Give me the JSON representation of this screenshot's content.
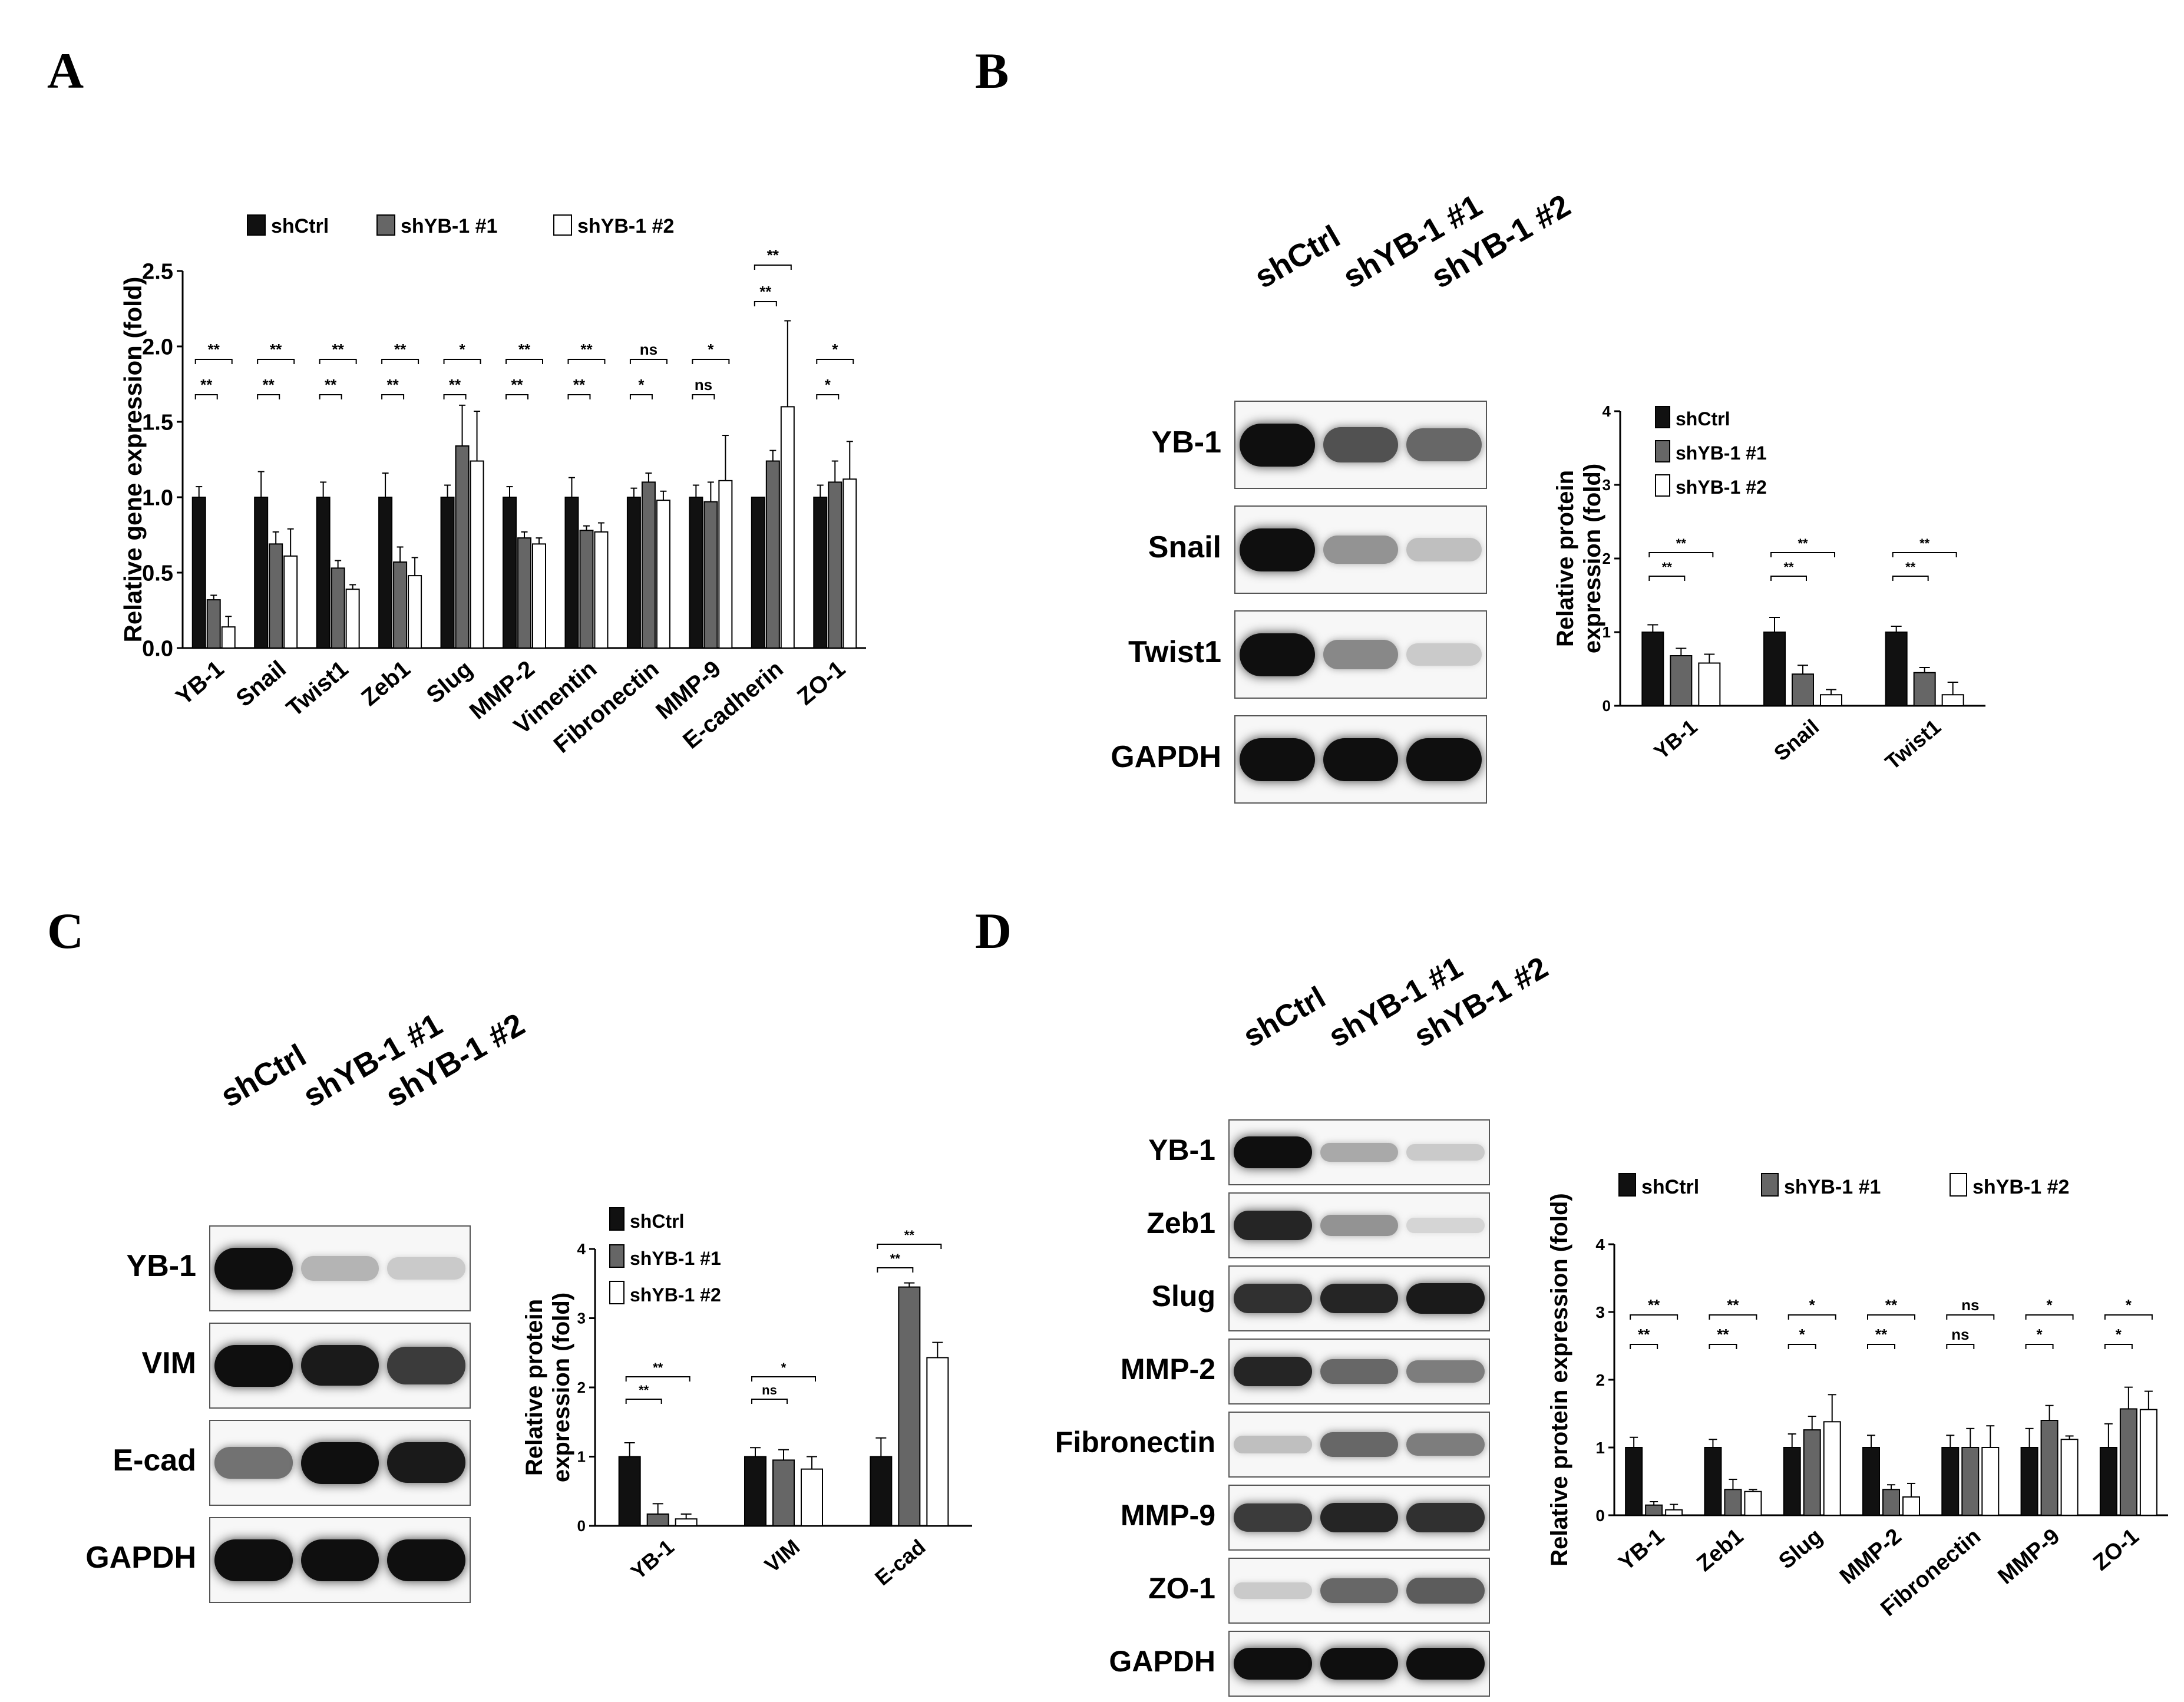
{
  "figure": {
    "panel_letters": [
      "A",
      "B",
      "C",
      "D"
    ],
    "groups": [
      "shCtrl",
      "shYB-1 #1",
      "shYB-1 #2"
    ],
    "group_colors": [
      "#111111",
      "#666666",
      "#ffffff"
    ]
  },
  "panelA": {
    "letter": "A",
    "legend": [
      "shCtrl",
      "shYB-1 #1",
      "shYB-1 #2"
    ]
  },
  "panelB": {
    "letter": "B",
    "blot": {
      "lanes": [
        "shCtrl",
        "shYB-1 #1",
        "shYB-1 #2"
      ],
      "rows": [
        "YB-1",
        "Snail",
        "Twist1",
        "GAPDH"
      ],
      "band_intensity": [
        [
          1.0,
          0.7,
          0.6
        ],
        [
          1.0,
          0.4,
          0.2
        ],
        [
          1.0,
          0.45,
          0.15
        ],
        [
          1.0,
          1.0,
          1.0
        ]
      ]
    }
  },
  "panelC": {
    "letter": "C",
    "blot": {
      "lanes": [
        "shCtrl",
        "shYB-1 #1",
        "shYB-1 #2"
      ],
      "rows": [
        "YB-1",
        "VIM",
        "E-cad",
        "GAPDH"
      ],
      "band_intensity": [
        [
          1.0,
          0.25,
          0.15
        ],
        [
          1.0,
          0.95,
          0.8
        ],
        [
          0.55,
          1.0,
          0.95
        ],
        [
          1.0,
          1.0,
          1.0
        ]
      ]
    }
  },
  "panelD": {
    "letter": "D",
    "blot": {
      "lanes": [
        "shCtrl",
        "shYB-1 #1",
        "shYB-1 #2"
      ],
      "rows": [
        "YB-1",
        "Zeb1",
        "Slug",
        "MMP-2",
        "Fibronectin",
        "MMP-9",
        "ZO-1",
        "GAPDH"
      ],
      "band_intensity": [
        [
          1.0,
          0.3,
          0.15
        ],
        [
          0.9,
          0.4,
          0.1
        ],
        [
          0.85,
          0.9,
          0.95
        ],
        [
          0.9,
          0.6,
          0.5
        ],
        [
          0.2,
          0.6,
          0.5
        ],
        [
          0.8,
          0.9,
          0.85
        ],
        [
          0.15,
          0.6,
          0.65
        ],
        [
          1.0,
          1.0,
          1.0
        ]
      ]
    }
  },
  "chart_data": [
    {
      "id": "A",
      "type": "bar",
      "ylabel": "Relative gene expression (fold)",
      "ylim": [
        0,
        2.5
      ],
      "yticks": [
        "0.0",
        "0.5",
        "1.0",
        "1.5",
        "2.0",
        "2.5"
      ],
      "categories": [
        "YB-1",
        "Snail",
        "Twist1",
        "Zeb1",
        "Slug",
        "MMP-2",
        "Vimentin",
        "Fibronectin",
        "MMP-9",
        "E-cadherin",
        "ZO-1"
      ],
      "series": [
        {
          "name": "shCtrl",
          "values": [
            1.0,
            1.0,
            1.0,
            1.0,
            1.0,
            1.0,
            1.0,
            1.0,
            1.0,
            1.0,
            1.0
          ],
          "errors": [
            0.07,
            0.17,
            0.1,
            0.16,
            0.08,
            0.07,
            0.13,
            0.06,
            0.08,
            0.0,
            0.08
          ]
        },
        {
          "name": "shYB-1 #1",
          "values": [
            0.32,
            0.69,
            0.53,
            0.57,
            1.34,
            0.73,
            0.78,
            1.1,
            0.97,
            1.24,
            1.1
          ],
          "errors": [
            0.03,
            0.08,
            0.05,
            0.1,
            0.27,
            0.04,
            0.03,
            0.06,
            0.13,
            0.07,
            0.14
          ]
        },
        {
          "name": "shYB-1 #2",
          "values": [
            0.14,
            0.61,
            0.39,
            0.48,
            1.24,
            0.69,
            0.77,
            0.98,
            1.11,
            1.6,
            1.12
          ],
          "errors": [
            0.07,
            0.18,
            0.03,
            0.12,
            0.33,
            0.04,
            0.06,
            0.06,
            0.3,
            0.57,
            0.25
          ]
        }
      ],
      "significance": [
        {
          "cat": 0,
          "upper": "**",
          "lower": "**"
        },
        {
          "cat": 1,
          "upper": "**",
          "lower": "**"
        },
        {
          "cat": 2,
          "upper": "**",
          "lower": "**"
        },
        {
          "cat": 3,
          "upper": "**",
          "lower": "**"
        },
        {
          "cat": 4,
          "upper": "*",
          "lower": "**"
        },
        {
          "cat": 5,
          "upper": "**",
          "lower": "**"
        },
        {
          "cat": 6,
          "upper": "**",
          "lower": "**"
        },
        {
          "cat": 7,
          "upper": "ns",
          "lower": "*"
        },
        {
          "cat": 8,
          "upper": "*",
          "lower": "ns"
        },
        {
          "cat": 9,
          "upper": "**",
          "lower": "**"
        },
        {
          "cat": 10,
          "upper": "*",
          "lower": "*"
        }
      ]
    },
    {
      "id": "B",
      "type": "bar",
      "ylabel": "Relative protein expression (fold)",
      "ylim": [
        0,
        4
      ],
      "yticks": [
        "0",
        "1",
        "2",
        "3",
        "4"
      ],
      "categories": [
        "YB-1",
        "Snail",
        "Twist1"
      ],
      "series": [
        {
          "name": "shCtrl",
          "values": [
            1.0,
            1.0,
            1.0
          ],
          "errors": [
            0.1,
            0.2,
            0.08
          ]
        },
        {
          "name": "shYB-1 #1",
          "values": [
            0.68,
            0.43,
            0.45
          ],
          "errors": [
            0.1,
            0.12,
            0.07
          ]
        },
        {
          "name": "shYB-1 #2",
          "values": [
            0.58,
            0.15,
            0.15
          ],
          "errors": [
            0.12,
            0.07,
            0.17
          ]
        }
      ],
      "significance": [
        {
          "cat": 0,
          "upper": "**",
          "lower": "**"
        },
        {
          "cat": 1,
          "upper": "**",
          "lower": "**"
        },
        {
          "cat": 2,
          "upper": "**",
          "lower": "**"
        }
      ]
    },
    {
      "id": "C",
      "type": "bar",
      "ylabel": "Relative protein expression (fold)",
      "ylim": [
        0,
        4
      ],
      "yticks": [
        "0",
        "1",
        "2",
        "3",
        "4"
      ],
      "categories": [
        "YB-1",
        "VIM",
        "E-cad"
      ],
      "series": [
        {
          "name": "shCtrl",
          "values": [
            1.0,
            1.0,
            1.0
          ],
          "errors": [
            0.2,
            0.13,
            0.27
          ]
        },
        {
          "name": "shYB-1 #1",
          "values": [
            0.17,
            0.95,
            3.45
          ],
          "errors": [
            0.15,
            0.15,
            0.06
          ]
        },
        {
          "name": "shYB-1 #2",
          "values": [
            0.1,
            0.82,
            2.43
          ],
          "errors": [
            0.07,
            0.18,
            0.22
          ]
        }
      ],
      "significance": [
        {
          "cat": 0,
          "upper": "**",
          "lower": "**"
        },
        {
          "cat": 1,
          "upper": "*",
          "lower": "ns"
        },
        {
          "cat": 2,
          "upper": "**",
          "lower": "**"
        }
      ]
    },
    {
      "id": "D",
      "type": "bar",
      "ylabel": "Relative protein expression (fold)",
      "ylim": [
        0,
        4
      ],
      "yticks": [
        "0",
        "1",
        "2",
        "3",
        "4"
      ],
      "categories": [
        "YB-1",
        "Zeb1",
        "Slug",
        "MMP-2",
        "Fibronectin",
        "MMP-9",
        "ZO-1"
      ],
      "series": [
        {
          "name": "shCtrl",
          "values": [
            1.0,
            1.0,
            1.0,
            1.0,
            1.0,
            1.0,
            1.0
          ],
          "errors": [
            0.15,
            0.12,
            0.2,
            0.18,
            0.18,
            0.28,
            0.35
          ]
        },
        {
          "name": "shYB-1 #1",
          "values": [
            0.15,
            0.38,
            1.26,
            0.38,
            1.0,
            1.4,
            1.57
          ],
          "errors": [
            0.05,
            0.15,
            0.2,
            0.07,
            0.28,
            0.22,
            0.32
          ]
        },
        {
          "name": "shYB-1 #2",
          "values": [
            0.08,
            0.35,
            1.38,
            0.27,
            1.0,
            1.12,
            1.56
          ],
          "errors": [
            0.08,
            0.03,
            0.4,
            0.2,
            0.32,
            0.05,
            0.27
          ]
        }
      ],
      "significance": [
        {
          "cat": 0,
          "upper": "**",
          "lower": "**"
        },
        {
          "cat": 1,
          "upper": "**",
          "lower": "**"
        },
        {
          "cat": 2,
          "upper": "*",
          "lower": "*"
        },
        {
          "cat": 3,
          "upper": "**",
          "lower": "**"
        },
        {
          "cat": 4,
          "upper": "ns",
          "lower": "ns"
        },
        {
          "cat": 5,
          "upper": "*",
          "lower": "*"
        },
        {
          "cat": 6,
          "upper": "*",
          "lower": "*"
        }
      ]
    }
  ]
}
